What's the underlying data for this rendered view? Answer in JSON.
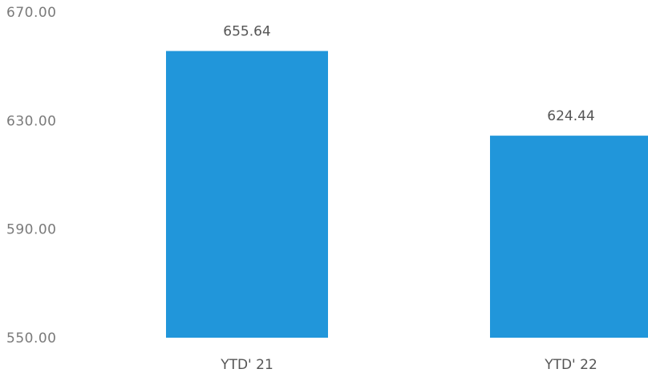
{
  "chart_data": {
    "type": "bar",
    "categories": [
      "YTD' 21",
      "YTD' 22"
    ],
    "values": [
      655.64,
      624.44
    ],
    "value_labels": [
      "655.64",
      "624.44"
    ],
    "y_tick_labels": [
      "670.00",
      "630.00",
      "590.00",
      "550.00"
    ],
    "y_ticks": [
      670,
      630,
      590,
      550
    ],
    "ylim": [
      550,
      670
    ],
    "grid": false,
    "legend": "none",
    "bar_color": "#2196da"
  }
}
